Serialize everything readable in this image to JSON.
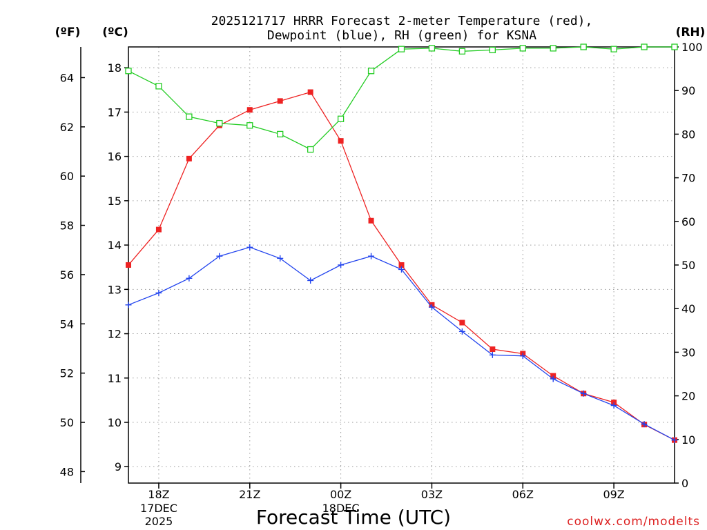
{
  "title_line1": "2025121717 HRRR Forecast 2-meter Temperature (red),",
  "title_line2": "Dewpoint (blue), RH (green) for KSNA",
  "units": {
    "fahrenheit": "(ºF)",
    "celsius": "(ºC)",
    "rh": "(RH)"
  },
  "xlabel": "Forecast Time (UTC)",
  "credit": "coolwx.com/modelts",
  "colors": {
    "temperature": "#ee2222",
    "dewpoint": "#2244ee",
    "rh": "#22cc22",
    "credit": "#dd2222"
  },
  "chart_data": {
    "type": "line",
    "x": [
      "17Z",
      "18Z",
      "19Z",
      "20Z",
      "21Z",
      "22Z",
      "23Z",
      "00Z",
      "01Z",
      "02Z",
      "03Z",
      "04Z",
      "05Z",
      "06Z",
      "07Z",
      "08Z",
      "09Z",
      "10Z",
      "11Z"
    ],
    "x_ticks": [
      {
        "label": "18Z",
        "date": "17DEC",
        "year": "2025"
      },
      {
        "label": "21Z"
      },
      {
        "label": "00Z",
        "date": "18DEC"
      },
      {
        "label": "03Z"
      },
      {
        "label": "06Z"
      },
      {
        "label": "09Z"
      }
    ],
    "x_tick_hours": [
      1,
      4,
      7,
      10,
      13,
      16
    ],
    "series": [
      {
        "name": "Temperature",
        "axis": "celsius",
        "marker": "square",
        "values": [
          13.55,
          14.35,
          15.95,
          16.7,
          17.05,
          17.25,
          17.45,
          16.35,
          14.55,
          13.55,
          12.65,
          12.25,
          11.65,
          11.55,
          11.05,
          10.65,
          10.45,
          9.95,
          9.6
        ]
      },
      {
        "name": "Dewpoint",
        "axis": "celsius",
        "marker": "plus",
        "values": [
          12.65,
          12.92,
          13.25,
          13.75,
          13.95,
          13.7,
          13.2,
          13.55,
          13.75,
          13.45,
          12.6,
          12.05,
          11.52,
          11.5,
          10.98,
          10.65,
          10.38,
          9.96,
          9.6
        ]
      },
      {
        "name": "RH",
        "axis": "rh",
        "marker": "open-square",
        "values": [
          94.5,
          91,
          84,
          82.5,
          82,
          80,
          76.5,
          83.5,
          94.5,
          99.5,
          99.7,
          99,
          99.3,
          99.7,
          99.7,
          100,
          99.5,
          100,
          100
        ]
      }
    ],
    "celsius_ticks": [
      9,
      10,
      11,
      12,
      13,
      14,
      15,
      16,
      17,
      18
    ],
    "fahrenheit_ticks": [
      48,
      50,
      52,
      54,
      56,
      58,
      60,
      62,
      64
    ],
    "rh_ticks": [
      0,
      10,
      20,
      30,
      40,
      50,
      60,
      70,
      80,
      90,
      100
    ],
    "celsius_range": [
      8.63,
      18.47
    ],
    "rh_range": [
      0,
      100
    ],
    "grid": true
  }
}
